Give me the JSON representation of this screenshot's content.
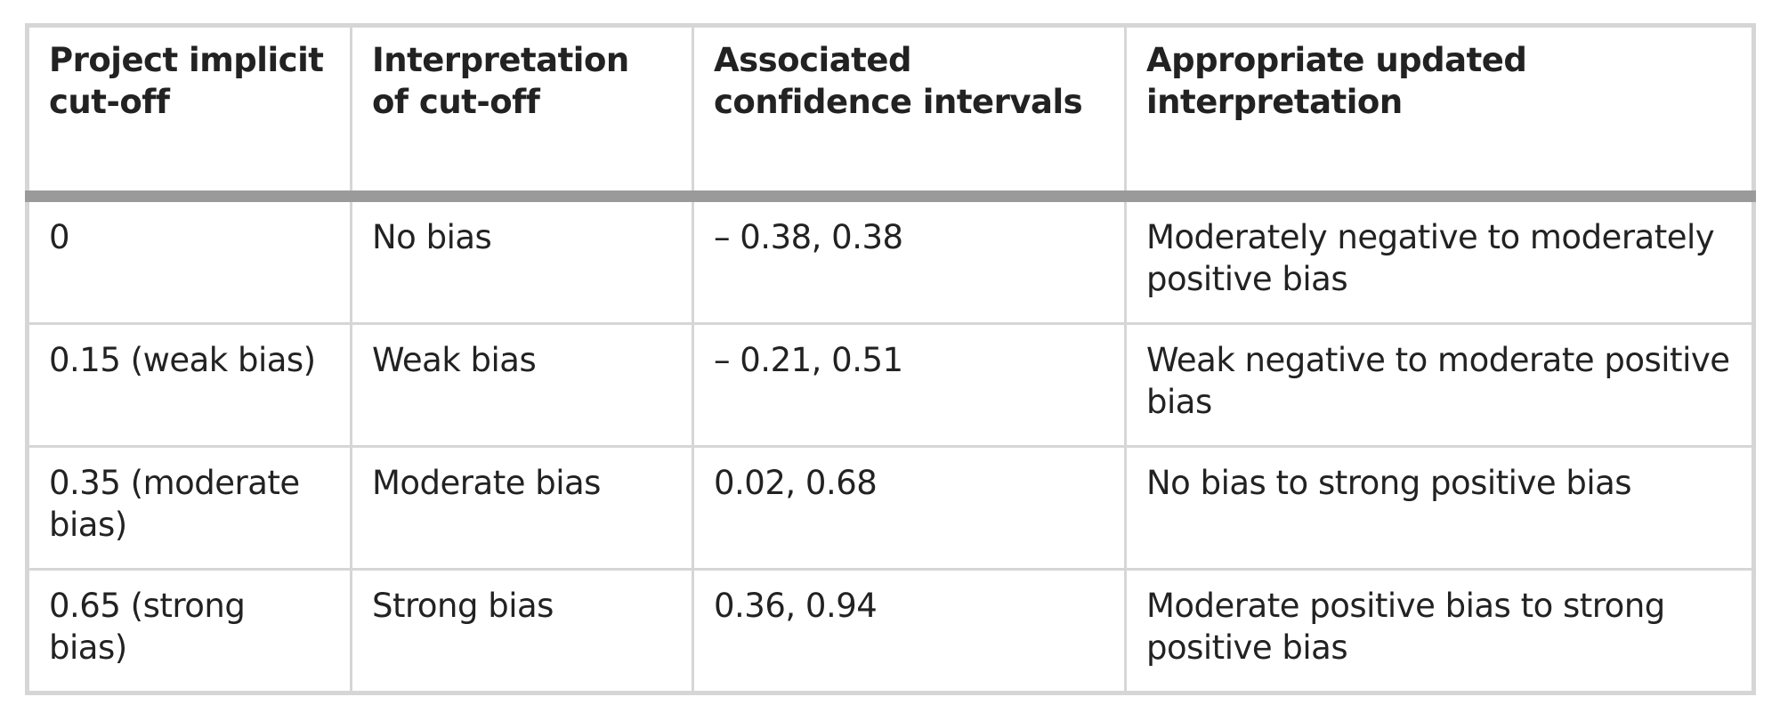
{
  "table": {
    "header": [
      "Project implicit cut-off",
      "Interpretation of cut-off",
      "Associated confidence intervals",
      "Appropriate updated interpretation"
    ],
    "rows": [
      [
        "0",
        "No bias",
        "– 0.38, 0.38",
        "Moderately negative to moderately positive bias"
      ],
      [
        "0.15 (weak bias)",
        "Weak bias",
        "– 0.21, 0.51",
        "Weak negative to moderate positive bias"
      ],
      [
        "0.35 (moderate bias)",
        "Moderate bias",
        "0.02, 0.68",
        "No bias to strong positive bias"
      ],
      [
        "0.65 (strong bias)",
        "Strong bias",
        "0.36, 0.94",
        "Moderate positive bias to strong positive bias"
      ]
    ]
  }
}
